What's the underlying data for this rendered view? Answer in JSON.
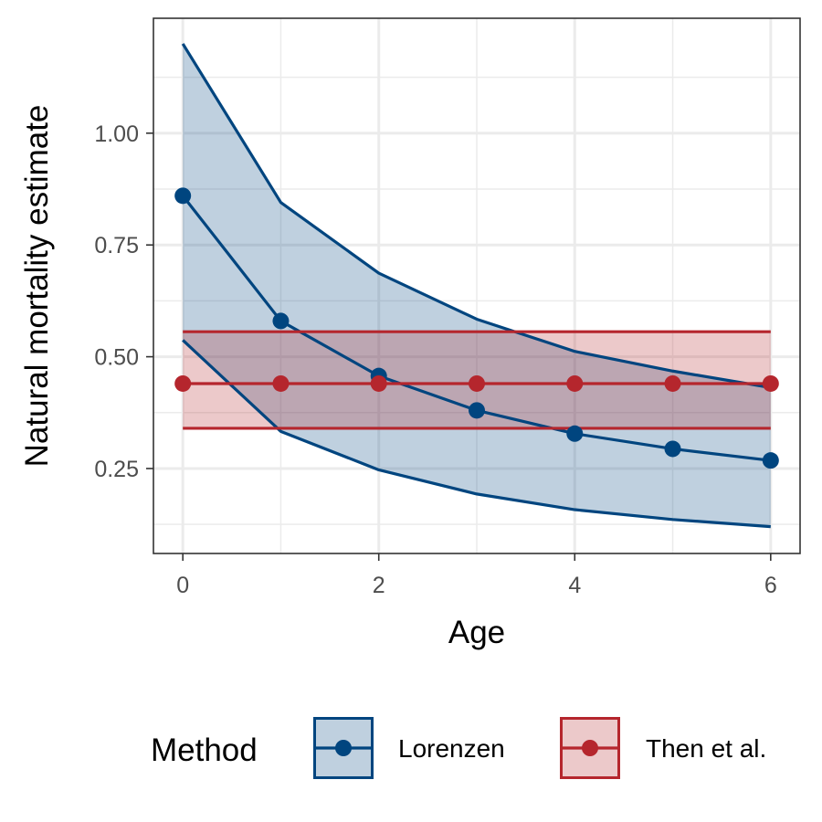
{
  "chart_data": {
    "type": "line",
    "title": "",
    "xlabel": "Age",
    "ylabel": "Natural mortality estimate",
    "xlim": [
      -0.3,
      6.3
    ],
    "ylim": [
      0.06,
      1.257
    ],
    "x_ticks": [
      0,
      2,
      4,
      6
    ],
    "x_minor_ticks": [
      1,
      3,
      5
    ],
    "y_ticks": [
      0.25,
      0.5,
      0.75,
      1.0
    ],
    "y_tick_labels": [
      "0.25",
      "0.50",
      "0.75",
      "1.00"
    ],
    "y_minor_ticks": [
      0.125,
      0.375,
      0.625,
      0.875,
      1.125
    ],
    "grid": true,
    "legend_title": "Method",
    "legend_position": "bottom",
    "series": [
      {
        "name": "Lorenzen",
        "color": "#00457f",
        "fill": "#00457f",
        "fill_opacity": 0.25,
        "x": [
          0,
          1,
          2,
          3,
          4,
          5,
          6
        ],
        "y": [
          0.86,
          0.58,
          0.457,
          0.38,
          0.328,
          0.294,
          0.268
        ],
        "lower": [
          0.537,
          0.333,
          0.247,
          0.193,
          0.158,
          0.136,
          0.12
        ],
        "upper": [
          1.2,
          0.845,
          0.687,
          0.584,
          0.512,
          0.468,
          0.431
        ]
      },
      {
        "name": "Then et al.",
        "color": "#b5262d",
        "fill": "#b5262d",
        "fill_opacity": 0.25,
        "x": [
          0,
          1,
          2,
          3,
          4,
          5,
          6
        ],
        "y": [
          0.44,
          0.44,
          0.44,
          0.44,
          0.44,
          0.44,
          0.44
        ],
        "lower": [
          0.34,
          0.34,
          0.34,
          0.34,
          0.34,
          0.34,
          0.34
        ],
        "upper": [
          0.556,
          0.556,
          0.556,
          0.556,
          0.556,
          0.556,
          0.556
        ]
      }
    ]
  }
}
